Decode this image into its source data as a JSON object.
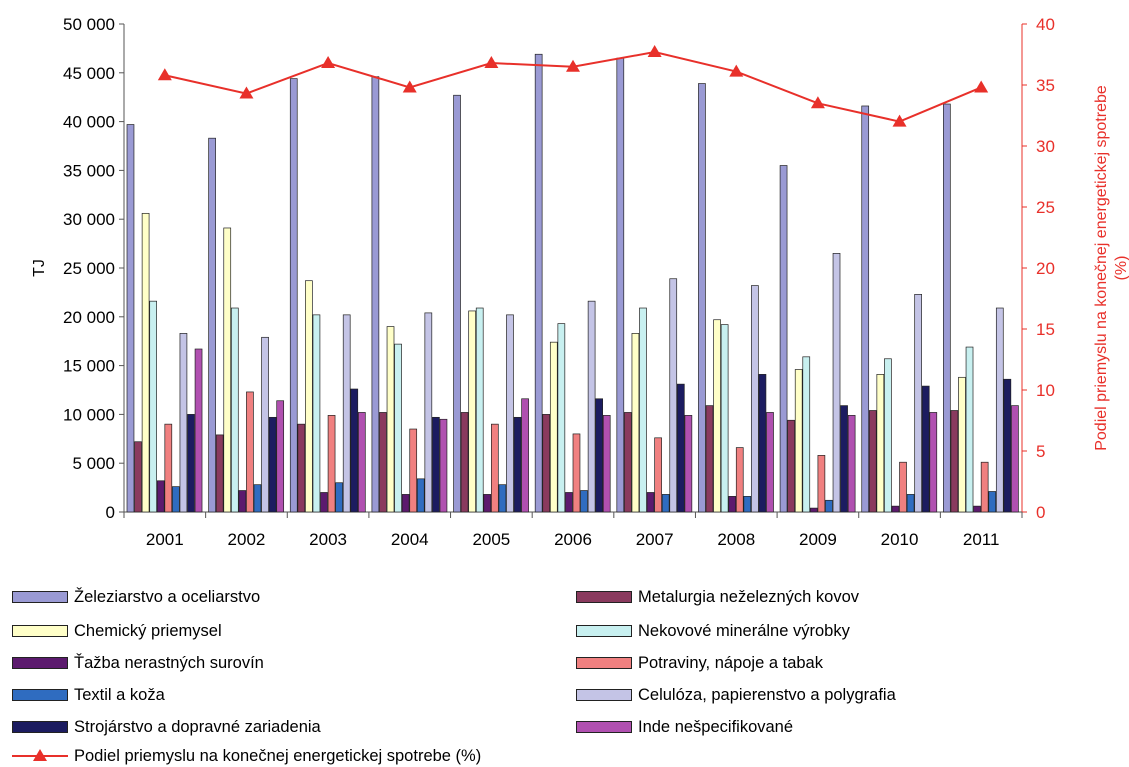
{
  "chart_data": {
    "type": "bar",
    "categories": [
      "2001",
      "2002",
      "2003",
      "2004",
      "2005",
      "2006",
      "2007",
      "2008",
      "2009",
      "2010",
      "2011"
    ],
    "ylabel": "TJ",
    "ylim": [
      0,
      50000
    ],
    "yticks": [
      "0",
      "5 000",
      "10 000",
      "15 000",
      "20 000",
      "25 000",
      "30 000",
      "35 000",
      "40 000",
      "45 000",
      "50 000"
    ],
    "y2label": "Podiel priemyslu na konečnej energetickej spotrebe (%)",
    "y2lim": [
      0,
      40
    ],
    "y2ticks": [
      "0",
      "5",
      "10",
      "15",
      "20",
      "25",
      "30",
      "35",
      "40"
    ],
    "grid": false,
    "legend_position": "bottom",
    "series": [
      {
        "name": "Železiarstvo a oceliarstvo",
        "color": "#9a9ad4",
        "values": [
          39700,
          38300,
          44400,
          44600,
          42700,
          46900,
          46500,
          43900,
          35500,
          41600,
          41800
        ]
      },
      {
        "name": "Metalurgia neželezných kovov",
        "color": "#8a3a5e",
        "values": [
          7200,
          7900,
          9000,
          10200,
          10200,
          10000,
          10200,
          10900,
          9400,
          10400,
          10400
        ]
      },
      {
        "name": "Chemický priemysel",
        "color": "#ffffc8",
        "values": [
          30600,
          29100,
          23700,
          19000,
          20600,
          17400,
          18300,
          19700,
          14600,
          14100,
          13800
        ]
      },
      {
        "name": "Nekovové minerálne výrobky",
        "color": "#c8f0f0",
        "values": [
          21600,
          20900,
          20200,
          17200,
          20900,
          19300,
          20900,
          19200,
          15900,
          15700,
          16900
        ]
      },
      {
        "name": "Ťažba nerastných surovín",
        "color": "#5c1a6e",
        "values": [
          3200,
          2200,
          2000,
          1800,
          1800,
          2000,
          2000,
          1600,
          400,
          600,
          600
        ]
      },
      {
        "name": "Potraviny, nápoje a tabak",
        "color": "#f08080",
        "values": [
          9000,
          12300,
          9900,
          8500,
          9000,
          8000,
          7600,
          6600,
          5800,
          5100,
          5100
        ]
      },
      {
        "name": "Textil a koža",
        "color": "#2f6cc0",
        "values": [
          2600,
          2800,
          3000,
          3400,
          2800,
          2200,
          1800,
          1600,
          1200,
          1800,
          2100
        ]
      },
      {
        "name": "Celulóza, papierenstvo a polygrafia",
        "color": "#c4c4e6",
        "values": [
          18300,
          17900,
          20200,
          20400,
          20200,
          21600,
          23900,
          23200,
          26500,
          22300,
          20900
        ]
      },
      {
        "name": "Strojárstvo a dopravné zariadenia",
        "color": "#1c1c60",
        "values": [
          10000,
          9700,
          12600,
          9700,
          9700,
          11600,
          13100,
          14100,
          10900,
          12900,
          13600
        ]
      },
      {
        "name": "Inde nešpecifikované",
        "color": "#b050b0",
        "values": [
          16700,
          11400,
          10200,
          9500,
          11600,
          9900,
          9900,
          10200,
          9900,
          10200,
          10900
        ]
      }
    ],
    "line_series": {
      "name": "Podiel priemyslu na konečnej energetickej spotrebe (%)",
      "color": "#e8302a",
      "axis": "right",
      "values": [
        35.8,
        34.3,
        36.8,
        34.8,
        36.8,
        36.5,
        37.7,
        36.1,
        33.5,
        32.0,
        34.8
      ]
    }
  }
}
